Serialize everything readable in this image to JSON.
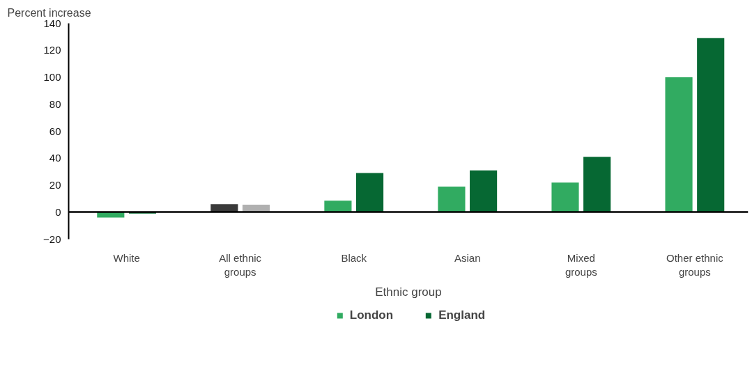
{
  "chart_data": {
    "type": "bar",
    "ylabel": "Percent increase",
    "xlabel": "Ethnic group",
    "categories": [
      "White",
      "All ethnic groups",
      "Black",
      "Asian",
      "Mixed groups",
      "Other ethnic groups"
    ],
    "series": [
      {
        "name": "London",
        "color": "#31ab61",
        "colors": [
          "#31ab61",
          "#3a3a3a",
          "#31ab61",
          "#31ab61",
          "#31ab61",
          "#31ab61"
        ],
        "values": [
          -4,
          6,
          8.5,
          19,
          22,
          100
        ]
      },
      {
        "name": "England",
        "color": "#066833",
        "colors": [
          "#066833",
          "#b0b0b0",
          "#066833",
          "#066833",
          "#066833",
          "#066833"
        ],
        "values": [
          -1,
          5.5,
          29,
          31,
          41,
          129
        ]
      }
    ],
    "ylim": [
      -20,
      140
    ],
    "yticks": [
      -20,
      0,
      20,
      40,
      60,
      80,
      100,
      120,
      140
    ],
    "legend": "bottom"
  }
}
